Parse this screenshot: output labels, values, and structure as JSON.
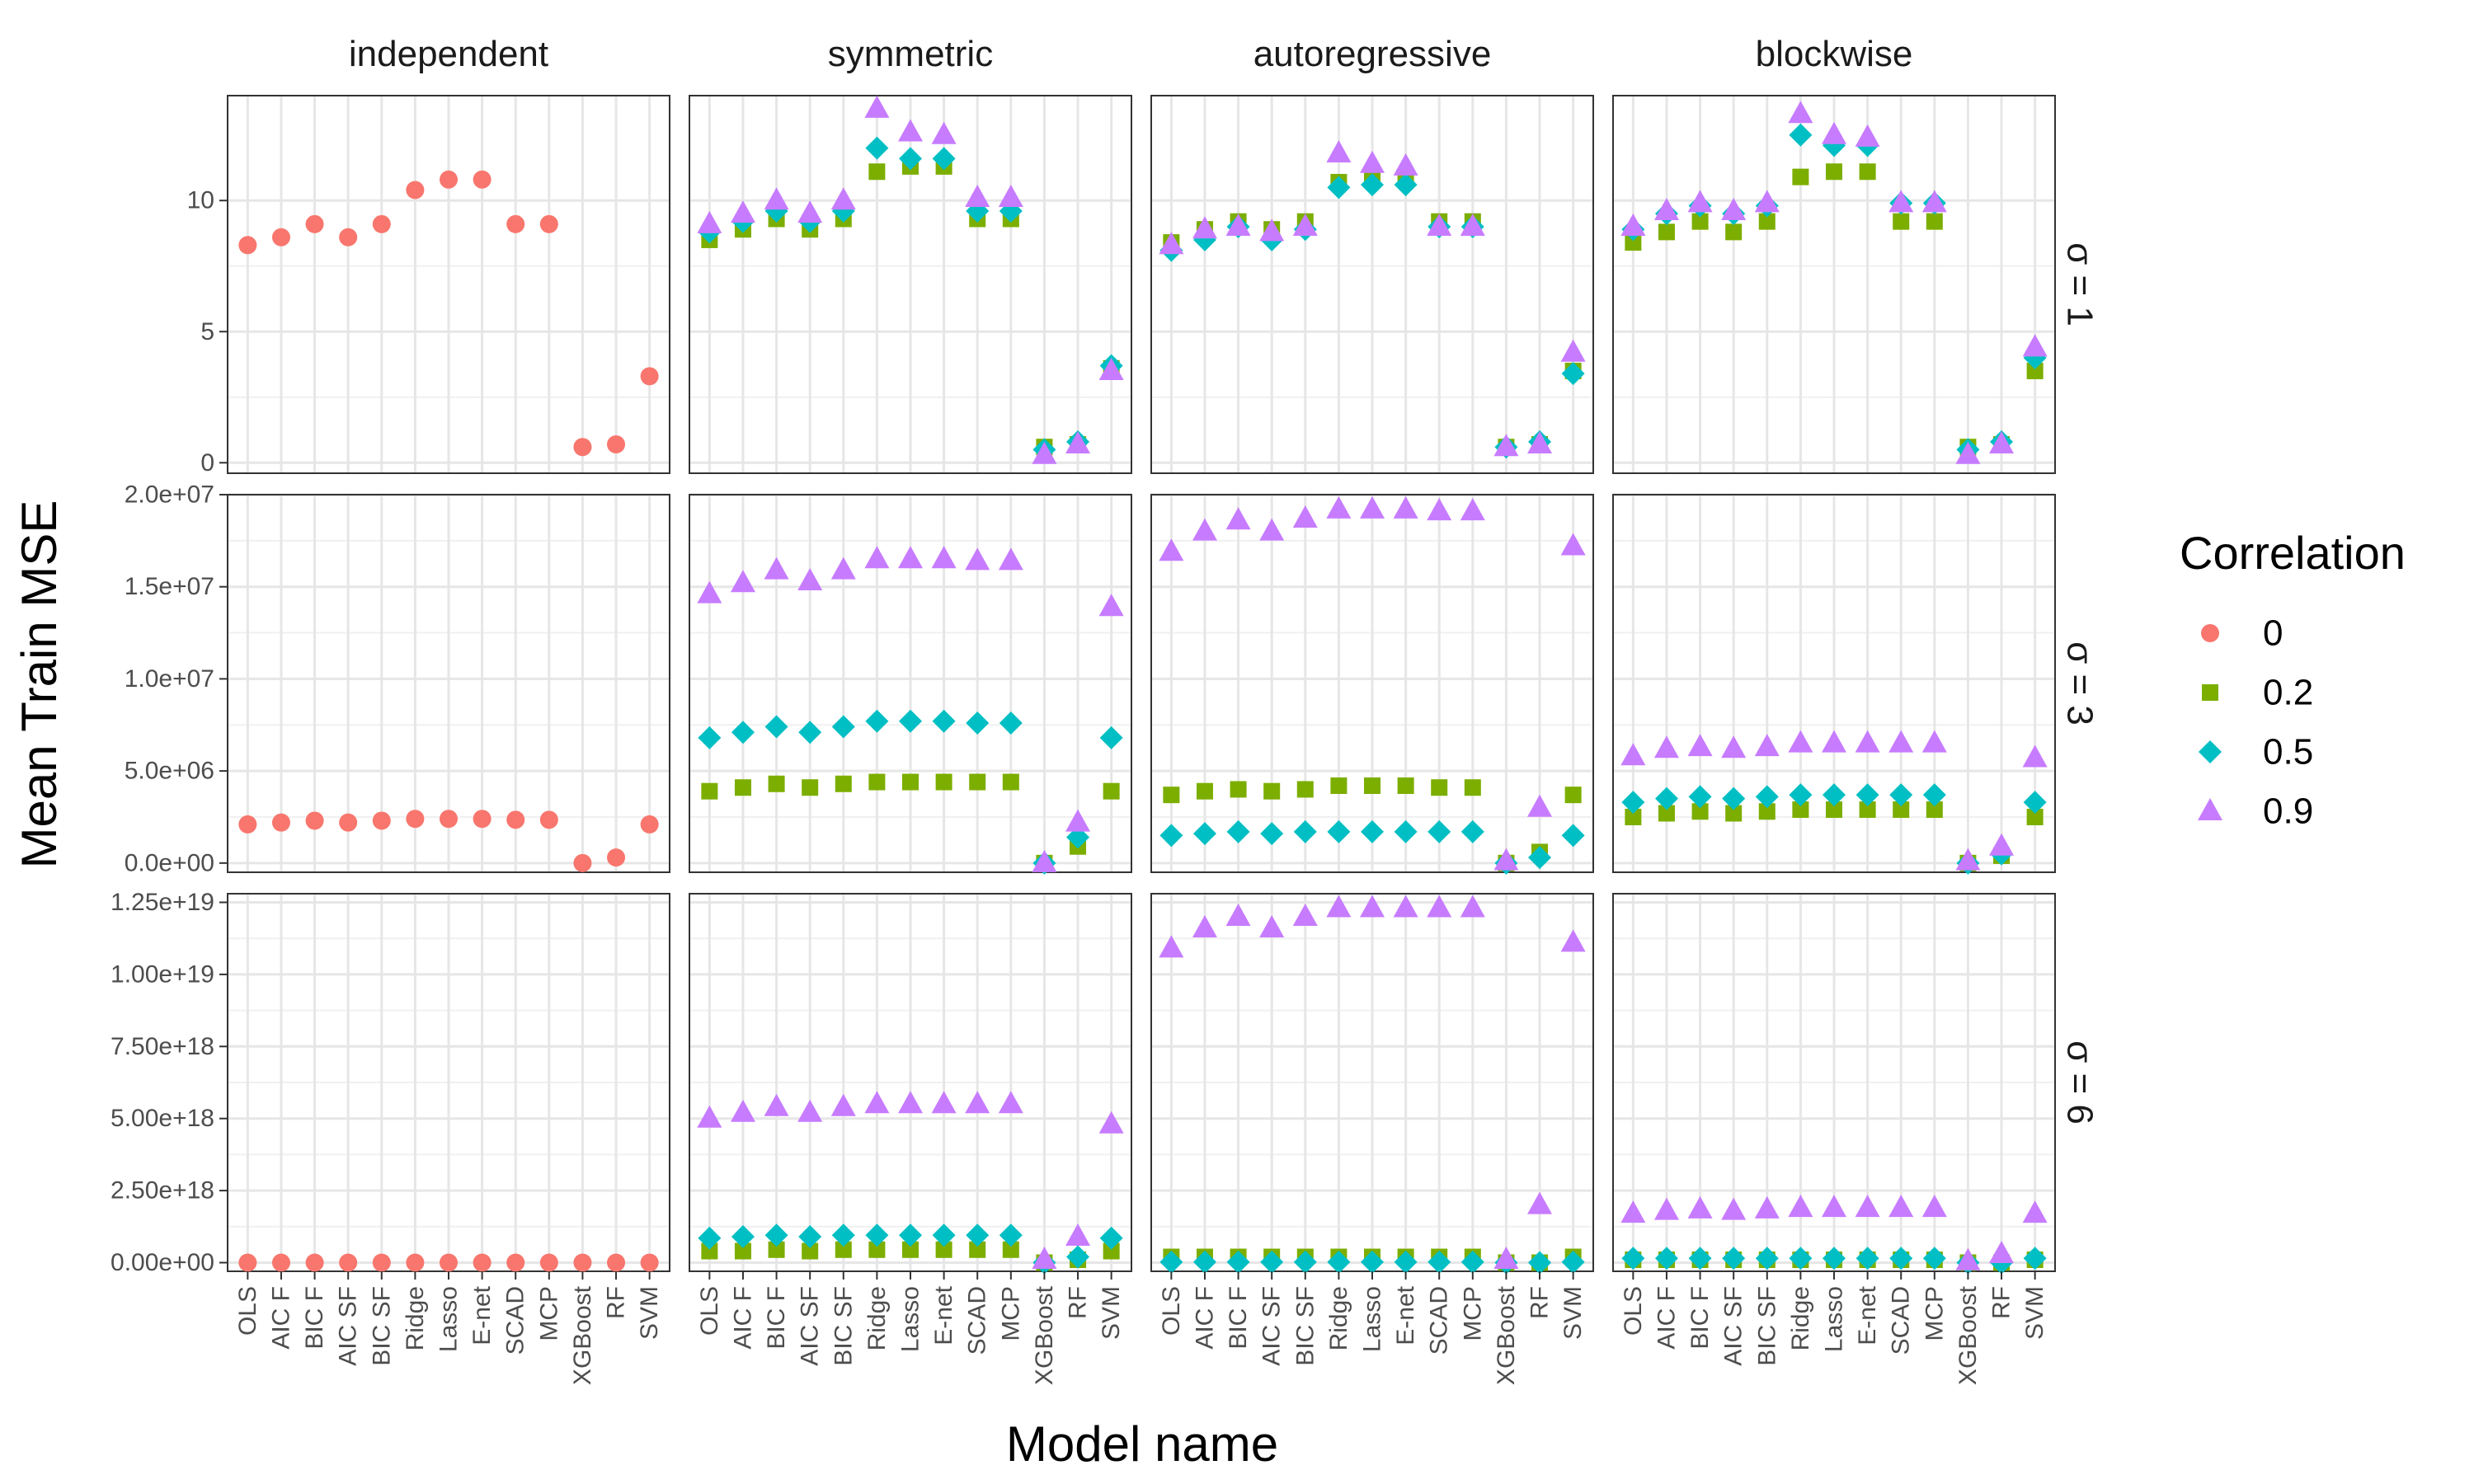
{
  "chart_data": {
    "type": "scatter",
    "xlabel": "Model name",
    "ylabel": "Mean Train MSE",
    "categories": [
      "OLS",
      "AIC F",
      "BIC F",
      "AIC SF",
      "BIC SF",
      "Ridge",
      "Lasso",
      "E-net",
      "SCAD",
      "MCP",
      "XGBoost",
      "RF",
      "SVM"
    ],
    "columns": [
      "independent",
      "symmetric",
      "autoregressive",
      "blockwise"
    ],
    "rows": [
      {
        "label": "σ = 1",
        "ylim": [
          -0.4,
          14
        ],
        "ticks": [
          0,
          5,
          10
        ],
        "tick_labels": [
          "0",
          "5",
          "10"
        ]
      },
      {
        "label": "σ = 3",
        "ylim": [
          -500000,
          20000000
        ],
        "ticks": [
          0,
          5000000,
          10000000,
          15000000,
          20000000
        ],
        "tick_labels": [
          "0.0e+00",
          "5.0e+06",
          "1.0e+07",
          "1.5e+07",
          "2.0e+07"
        ]
      },
      {
        "label": "σ = 6",
        "ylim": [
          -300000000000000000,
          12800000000000000000
        ],
        "ticks": [
          0,
          2500000000000000000,
          5000000000000000000,
          7500000000000000000,
          10000000000000000000,
          12500000000000000000
        ],
        "tick_labels": [
          "0.00e+00",
          "2.50e+18",
          "5.00e+18",
          "7.50e+18",
          "1.00e+19",
          "1.25e+19"
        ]
      }
    ],
    "legend": {
      "title": "Correlation",
      "entries": [
        {
          "label": "0",
          "color": "#F8766D",
          "shape": "circle"
        },
        {
          "label": "0.2",
          "color": "#7CAE00",
          "shape": "square"
        },
        {
          "label": "0.5",
          "color": "#00BFC4",
          "shape": "diamond"
        },
        {
          "label": "0.9",
          "color": "#C77CFF",
          "shape": "triangle"
        }
      ]
    },
    "panels": [
      {
        "row": 0,
        "col": 0,
        "series": [
          {
            "name": "0",
            "values": [
              8.3,
              8.6,
              9.1,
              8.6,
              9.1,
              10.4,
              10.8,
              10.8,
              9.1,
              9.1,
              0.6,
              0.7,
              3.3
            ]
          }
        ]
      },
      {
        "row": 0,
        "col": 1,
        "series": [
          {
            "name": "0.2",
            "values": [
              8.5,
              8.9,
              9.3,
              8.9,
              9.3,
              11.1,
              11.3,
              11.3,
              9.3,
              9.3,
              0.6,
              0.7,
              3.6
            ]
          },
          {
            "name": "0.5",
            "values": [
              8.8,
              9.2,
              9.6,
              9.2,
              9.6,
              12.0,
              11.6,
              11.6,
              9.6,
              9.6,
              0.5,
              0.8,
              3.7
            ]
          },
          {
            "name": "0.9",
            "values": [
              9.1,
              9.5,
              10.0,
              9.5,
              10.0,
              13.5,
              12.6,
              12.5,
              10.1,
              10.1,
              0.3,
              0.7,
              3.5
            ]
          }
        ]
      },
      {
        "row": 0,
        "col": 2,
        "series": [
          {
            "name": "0.2",
            "values": [
              8.4,
              8.9,
              9.2,
              8.9,
              9.2,
              10.7,
              10.8,
              10.8,
              9.2,
              9.2,
              0.6,
              0.7,
              3.5
            ]
          },
          {
            "name": "0.5",
            "values": [
              8.1,
              8.5,
              9.0,
              8.5,
              8.9,
              10.5,
              10.6,
              10.6,
              9.0,
              9.0,
              0.6,
              0.8,
              3.4
            ]
          },
          {
            "name": "0.9",
            "values": [
              8.3,
              8.9,
              9.0,
              8.8,
              9.0,
              11.8,
              11.4,
              11.3,
              9.0,
              9.0,
              0.6,
              0.7,
              4.2
            ]
          }
        ]
      },
      {
        "row": 0,
        "col": 3,
        "series": [
          {
            "name": "0.2",
            "values": [
              8.4,
              8.8,
              9.2,
              8.8,
              9.2,
              10.9,
              11.1,
              11.1,
              9.2,
              9.2,
              0.6,
              0.7,
              3.5
            ]
          },
          {
            "name": "0.5",
            "values": [
              8.9,
              9.5,
              9.8,
              9.5,
              9.8,
              12.5,
              12.1,
              12.1,
              9.9,
              9.9,
              0.5,
              0.8,
              4.0
            ]
          },
          {
            "name": "0.9",
            "values": [
              9.0,
              9.6,
              9.9,
              9.6,
              9.9,
              13.3,
              12.5,
              12.4,
              9.9,
              9.9,
              0.3,
              0.7,
              4.4
            ]
          }
        ]
      },
      {
        "row": 1,
        "col": 0,
        "series": [
          {
            "name": "0",
            "values": [
              2100000,
              2200000,
              2300000,
              2200000,
              2300000,
              2400000,
              2400000,
              2400000,
              2350000,
              2350000,
              0,
              300000,
              2100000
            ]
          }
        ]
      },
      {
        "row": 1,
        "col": 1,
        "series": [
          {
            "name": "0.2",
            "values": [
              3900000,
              4100000,
              4300000,
              4100000,
              4300000,
              4400000,
              4400000,
              4400000,
              4400000,
              4400000,
              0,
              900000,
              3900000
            ]
          },
          {
            "name": "0.5",
            "values": [
              6800000,
              7100000,
              7400000,
              7100000,
              7400000,
              7700000,
              7700000,
              7700000,
              7600000,
              7600000,
              0,
              1400000,
              6800000
            ]
          },
          {
            "name": "0.9",
            "values": [
              14600000,
              15200000,
              15900000,
              15300000,
              15900000,
              16500000,
              16500000,
              16500000,
              16400000,
              16400000,
              0,
              2200000,
              13900000
            ]
          }
        ]
      },
      {
        "row": 1,
        "col": 2,
        "series": [
          {
            "name": "0.2",
            "values": [
              3700000,
              3900000,
              4000000,
              3900000,
              4000000,
              4200000,
              4200000,
              4200000,
              4100000,
              4100000,
              0,
              600000,
              3700000
            ]
          },
          {
            "name": "0.5",
            "values": [
              1500000,
              1600000,
              1700000,
              1600000,
              1700000,
              1700000,
              1700000,
              1700000,
              1700000,
              1700000,
              0,
              300000,
              1500000
            ]
          },
          {
            "name": "0.9",
            "values": [
              16900000,
              18000000,
              18600000,
              18000000,
              18700000,
              19200000,
              19200000,
              19200000,
              19100000,
              19100000,
              100000,
              3000000,
              17200000
            ]
          }
        ]
      },
      {
        "row": 1,
        "col": 3,
        "series": [
          {
            "name": "0.2",
            "values": [
              2500000,
              2700000,
              2800000,
              2700000,
              2800000,
              2900000,
              2900000,
              2900000,
              2900000,
              2900000,
              0,
              400000,
              2500000
            ]
          },
          {
            "name": "0.5",
            "values": [
              3300000,
              3500000,
              3600000,
              3500000,
              3600000,
              3700000,
              3700000,
              3700000,
              3700000,
              3700000,
              0,
              500000,
              3300000
            ]
          },
          {
            "name": "0.9",
            "values": [
              5800000,
              6200000,
              6300000,
              6200000,
              6300000,
              6500000,
              6500000,
              6500000,
              6500000,
              6500000,
              100000,
              900000,
              5700000
            ]
          }
        ]
      },
      {
        "row": 2,
        "col": 0,
        "series": [
          {
            "name": "0",
            "values": [
              0,
              0,
              0,
              0,
              0,
              0,
              0,
              0,
              0,
              0,
              0,
              0,
              0
            ]
          }
        ]
      },
      {
        "row": 2,
        "col": 1,
        "series": [
          {
            "name": "0.2",
            "values": [
              400000000000000000,
              400000000000000000,
              450000000000000000,
              400000000000000000,
              450000000000000000,
              450000000000000000,
              450000000000000000,
              450000000000000000,
              450000000000000000,
              450000000000000000,
              0,
              100000000000000000,
              400000000000000000
            ]
          },
          {
            "name": "0.5",
            "values": [
              850000000000000000,
              900000000000000000,
              950000000000000000,
              900000000000000000,
              950000000000000000,
              950000000000000000,
              950000000000000000,
              950000000000000000,
              950000000000000000,
              950000000000000000,
              0,
              200000000000000000,
              850000000000000000
            ]
          },
          {
            "name": "0.9",
            "values": [
              5000000000000000000,
              5200000000000000000,
              5400000000000000000,
              5200000000000000000,
              5400000000000000000,
              5500000000000000000,
              5500000000000000000,
              5500000000000000000,
              5500000000000000000,
              5500000000000000000,
              100000000000000000,
              900000000000000000,
              4800000000000000000
            ]
          }
        ]
      },
      {
        "row": 2,
        "col": 2,
        "series": [
          {
            "name": "0.2",
            "values": [
              200000000000000000,
              200000000000000000,
              200000000000000000,
              200000000000000000,
              200000000000000000,
              200000000000000000,
              200000000000000000,
              200000000000000000,
              200000000000000000,
              200000000000000000,
              0,
              0,
              200000000000000000
            ]
          },
          {
            "name": "0.5",
            "values": [
              20000000000000000,
              20000000000000000,
              20000000000000000,
              20000000000000000,
              20000000000000000,
              20000000000000000,
              20000000000000000,
              20000000000000000,
              20000000000000000,
              20000000000000000,
              0,
              0,
              20000000000000000
            ]
          },
          {
            "name": "0.9",
            "values": [
              10900000000000000000,
              11600000000000000000,
              12000000000000000000,
              11600000000000000000,
              12000000000000000000,
              12300000000000000000,
              12300000000000000000,
              12300000000000000000,
              12300000000000000000,
              12300000000000000000,
              100000000000000000,
              2000000000000000000,
              11100000000000000000
            ]
          }
        ]
      },
      {
        "row": 2,
        "col": 3,
        "series": [
          {
            "name": "0.2",
            "values": [
              100000000000000000,
              100000000000000000,
              100000000000000000,
              100000000000000000,
              100000000000000000,
              100000000000000000,
              100000000000000000,
              100000000000000000,
              100000000000000000,
              100000000000000000,
              0,
              0,
              100000000000000000
            ]
          },
          {
            "name": "0.5",
            "values": [
              150000000000000000,
              150000000000000000,
              150000000000000000,
              150000000000000000,
              150000000000000000,
              150000000000000000,
              150000000000000000,
              150000000000000000,
              150000000000000000,
              150000000000000000,
              0,
              0,
              150000000000000000
            ]
          },
          {
            "name": "0.9",
            "values": [
              1700000000000000000,
              1800000000000000000,
              1850000000000000000,
              1800000000000000000,
              1850000000000000000,
              1900000000000000000,
              1900000000000000000,
              1900000000000000000,
              1900000000000000000,
              1900000000000000000,
              50000000000000000,
              300000000000000000,
              1700000000000000000
            ]
          }
        ]
      }
    ]
  }
}
